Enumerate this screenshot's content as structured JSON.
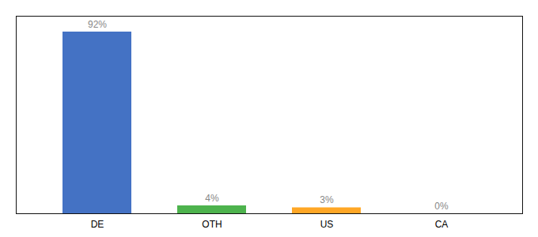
{
  "chart_data": {
    "type": "bar",
    "categories": [
      "DE",
      "OTH",
      "US",
      "CA"
    ],
    "values": [
      92,
      4,
      3,
      0
    ],
    "value_labels": [
      "92%",
      "4%",
      "3%",
      "0%"
    ],
    "colors": [
      "#4472c4",
      "#4db34d",
      "#ffa726",
      "#ffa726"
    ],
    "ylim": [
      0,
      100
    ],
    "data_labels": true,
    "tick_labels": "x",
    "grid": false
  }
}
